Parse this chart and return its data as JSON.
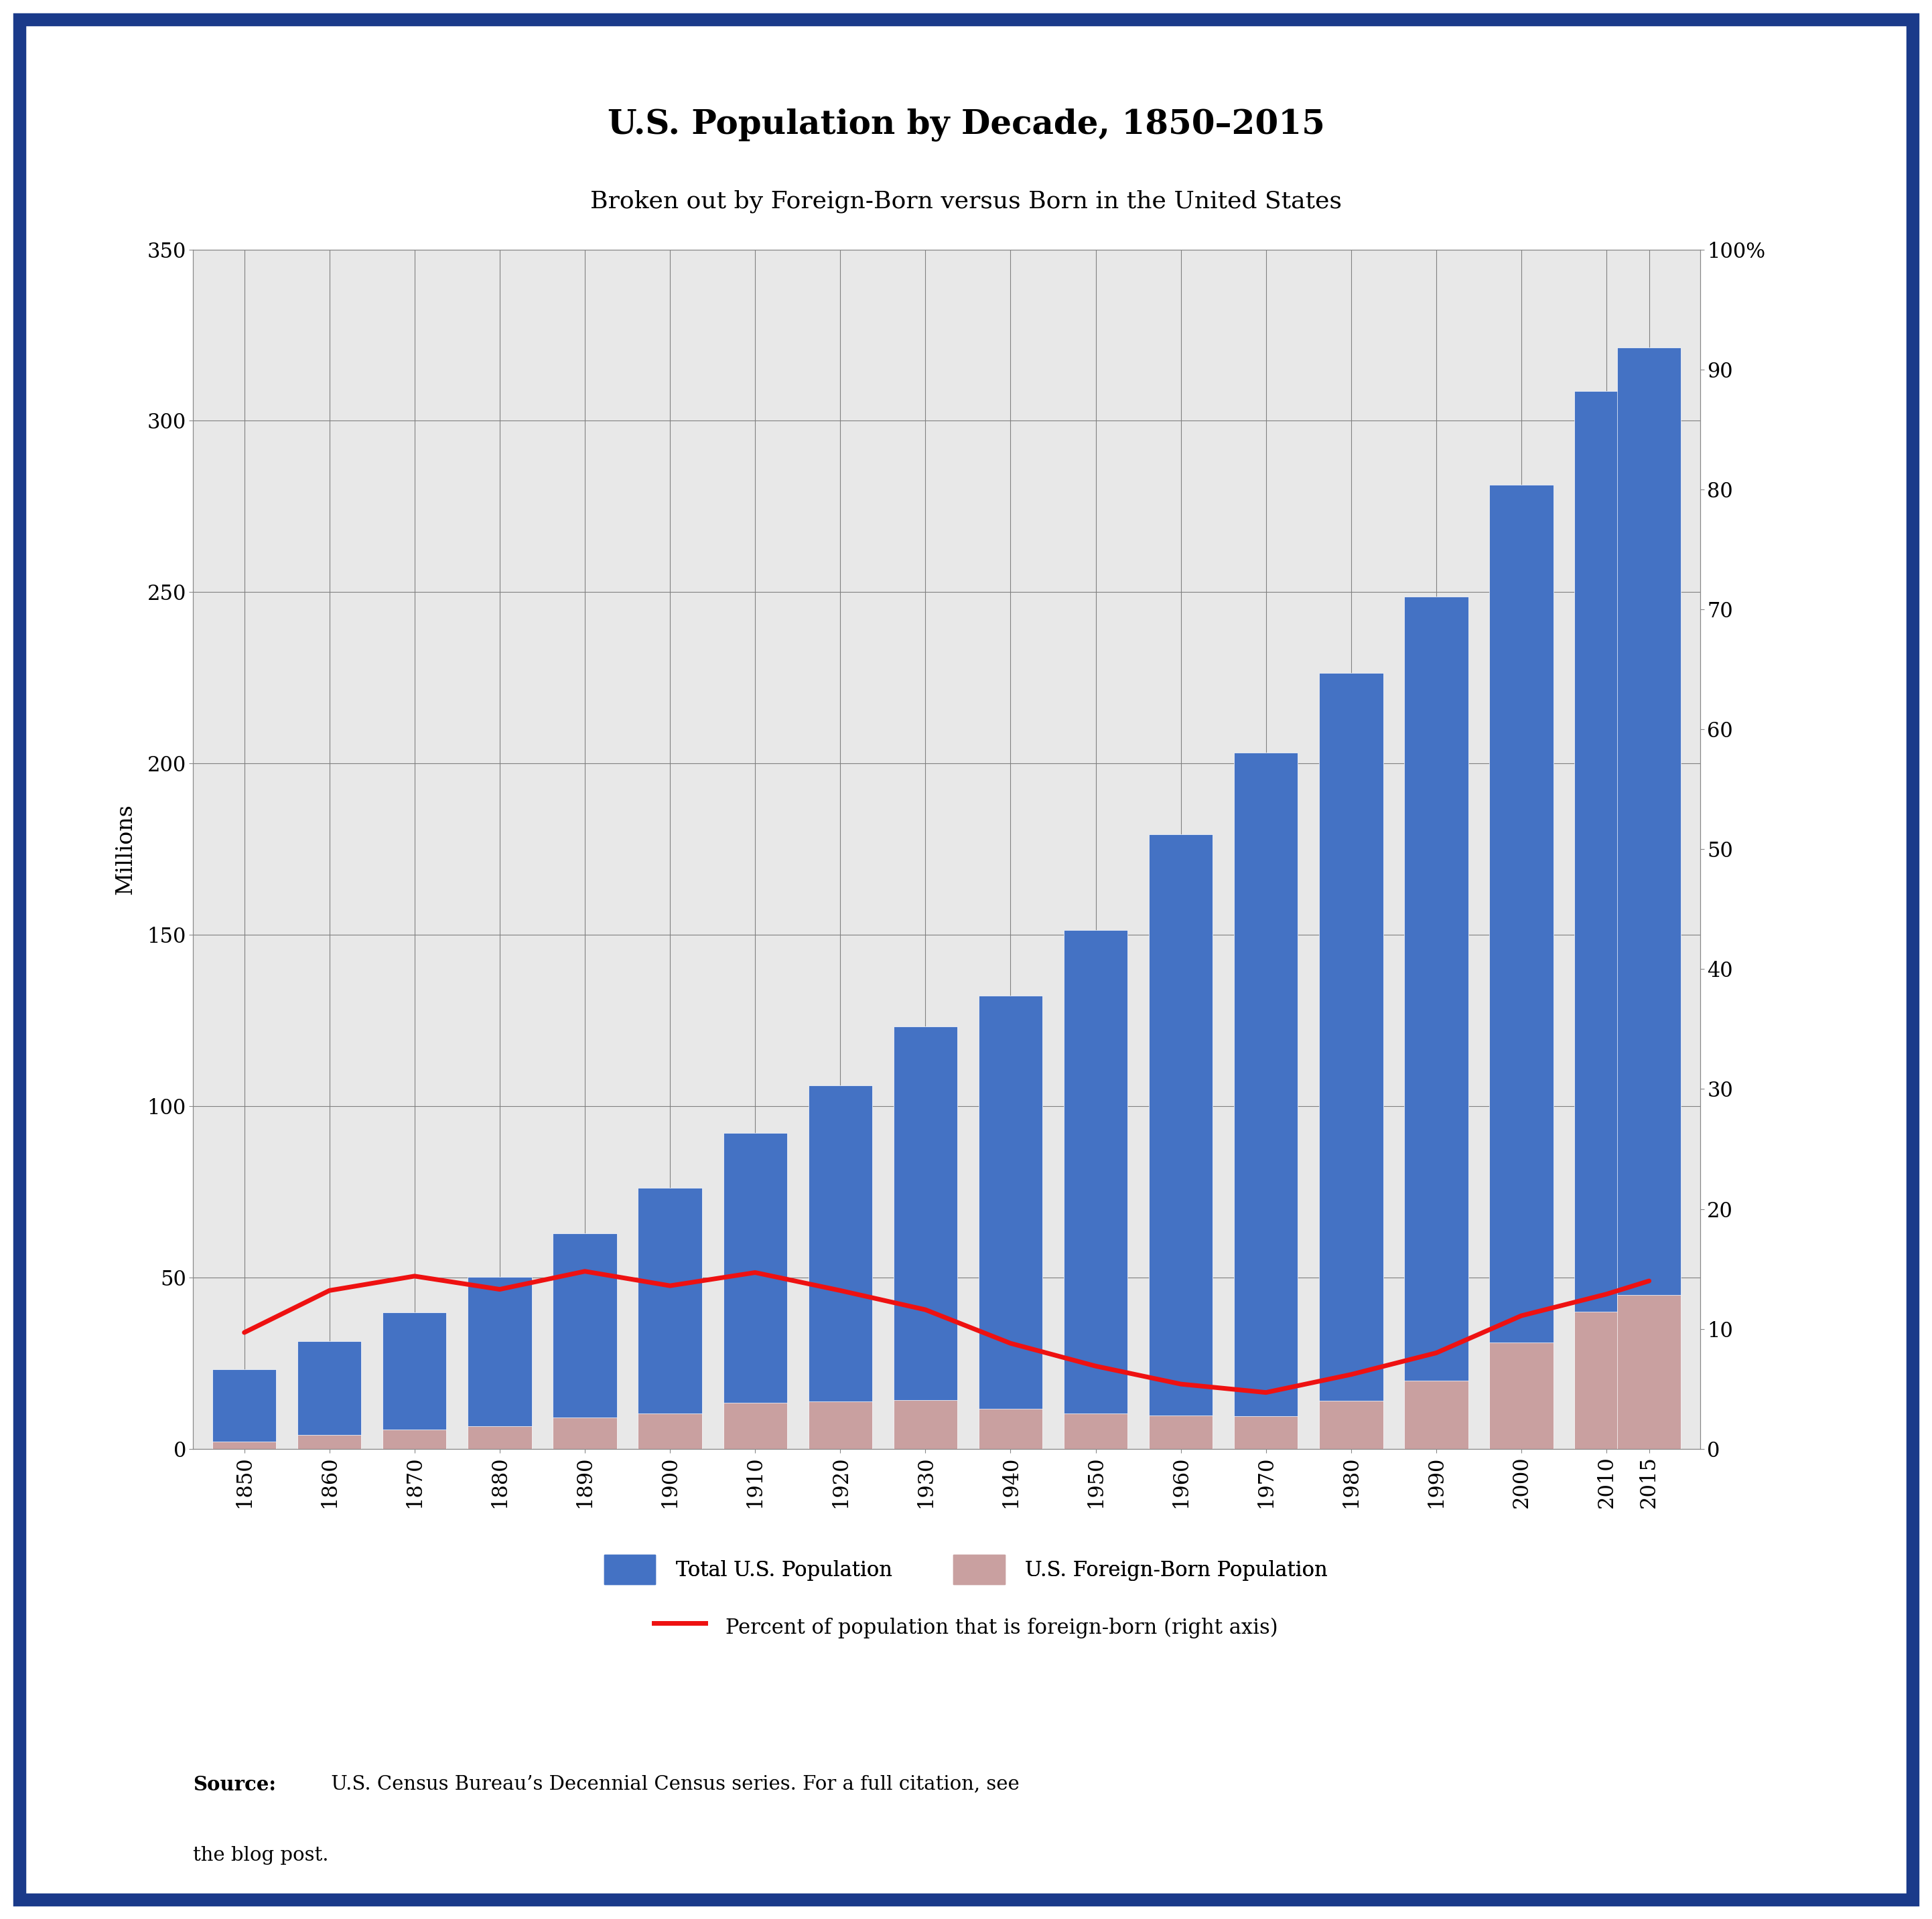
{
  "title": "U.S. Population by Decade, 1850–2015",
  "subtitle": "Broken out by Foreign-Born versus Born in the United States",
  "years": [
    1850,
    1860,
    1870,
    1880,
    1890,
    1900,
    1910,
    1920,
    1930,
    1940,
    1950,
    1960,
    1970,
    1980,
    1990,
    2000,
    2010,
    2015
  ],
  "total_population": [
    23.2,
    31.4,
    39.8,
    50.2,
    62.9,
    76.2,
    92.2,
    106.0,
    123.2,
    132.2,
    151.3,
    179.3,
    203.2,
    226.5,
    248.7,
    281.4,
    308.7,
    321.4
  ],
  "foreign_born": [
    2.2,
    4.1,
    5.6,
    6.7,
    9.2,
    10.3,
    13.5,
    13.9,
    14.2,
    11.6,
    10.3,
    9.7,
    9.6,
    14.1,
    19.8,
    31.1,
    40.0,
    45.0
  ],
  "pct_foreign_born": [
    9.7,
    13.2,
    14.4,
    13.3,
    14.8,
    13.6,
    14.7,
    13.2,
    11.6,
    8.8,
    6.9,
    5.4,
    4.7,
    6.2,
    8.0,
    11.1,
    12.9,
    14.0
  ],
  "bar_color_total": "#4472C4",
  "bar_color_foreign": "#C9A0A0",
  "line_color": "#EE1111",
  "background_color": "#E8E8E8",
  "ylabel_left": "Millions",
  "ylim_left": [
    0,
    350
  ],
  "ylim_right": [
    0,
    100
  ],
  "yticks_left": [
    0,
    50,
    100,
    150,
    200,
    250,
    300,
    350
  ],
  "yticks_right": [
    0,
    10,
    20,
    30,
    40,
    50,
    60,
    70,
    80,
    90,
    100
  ],
  "ytick_right_labels": [
    "0",
    "10",
    "20",
    "30",
    "40",
    "50",
    "60",
    "70",
    "80",
    "90",
    "100%"
  ],
  "source_bold": "Source:",
  "source_rest": " U.S. Census Bureau’s Decennial Census series. For a full citation, see",
  "source_rest2": "the blog post.",
  "border_color": "#1A3A8A",
  "title_fontsize": 36,
  "subtitle_fontsize": 26,
  "legend_label_total": "Total U.S. Population",
  "legend_label_foreign": "U.S. Foreign-Born Population",
  "legend_label_line": "Percent of population that is foreign-born (right axis)",
  "tick_fontsize": 22,
  "ylabel_fontsize": 24,
  "source_fontsize": 21,
  "legend_fontsize": 22
}
